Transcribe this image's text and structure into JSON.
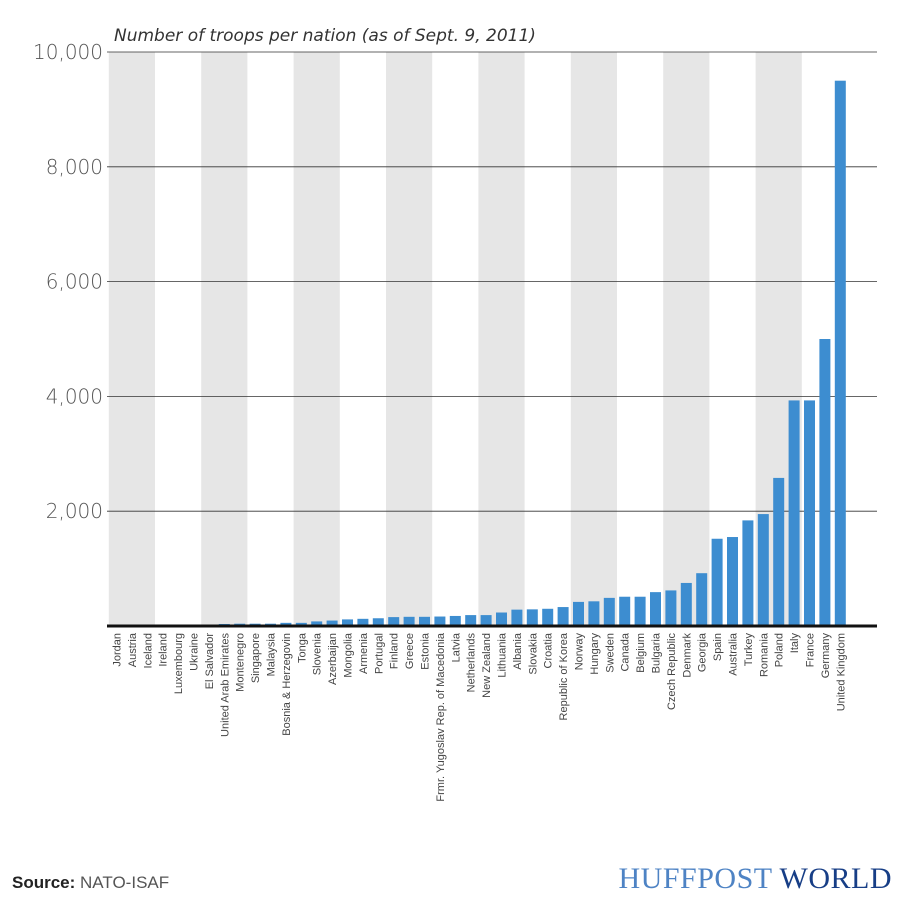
{
  "chart_data": {
    "type": "bar",
    "title": "Number of troops per nation (as of Sept. 9, 2011)",
    "ylim": [
      0,
      10000
    ],
    "yticks": [
      2000,
      4000,
      6000,
      8000,
      10000
    ],
    "ytick_labels": [
      "2,000",
      "4,000",
      "6,000",
      "8,000",
      "10,000"
    ],
    "grid": true,
    "bar_color": "#3d8dd0",
    "band_color": "#e6e6e6",
    "categories": [
      "Jordan",
      "Austria",
      "Iceland",
      "Ireland",
      "Luxembourg",
      "Ukraine",
      "El Salvador",
      "United Arab Emirates",
      "Montenegro",
      "Singapore",
      "Malaysia",
      "Bosnia & Herzegovin",
      "Tonga",
      "Slovenia",
      "Azerbaijan",
      "Mongolia",
      "Armenia",
      "Portugal",
      "Finland",
      "Greece",
      "Estonia",
      "Frmr. Yugoslav Rep. of Macedonia",
      "Latvia",
      "Netherlands",
      "New Zealand",
      "Lithuania",
      "Albania",
      "Slovakia",
      "Croatia",
      "Republic of Korea",
      "Norway",
      "Hungary",
      "Sweden",
      "Canada",
      "Belgium",
      "Bulgaria",
      "Czech Republic",
      "Denmark",
      "Georgia",
      "Spain",
      "Australia",
      "Turkey",
      "Romania",
      "Poland",
      "Italy",
      "France",
      "Germany",
      "United Kingdom"
    ],
    "values": [
      0,
      3,
      4,
      7,
      9,
      10,
      25,
      35,
      40,
      40,
      40,
      55,
      55,
      80,
      95,
      115,
      125,
      135,
      155,
      160,
      160,
      165,
      175,
      190,
      190,
      235,
      285,
      290,
      300,
      330,
      420,
      430,
      490,
      510,
      510,
      590,
      620,
      750,
      920,
      1520,
      1550,
      1840,
      1950,
      2580,
      3930,
      3930,
      5000,
      9500
    ]
  },
  "source": {
    "label": "Source:",
    "value": "NATO-ISAF"
  },
  "brand": {
    "part1": "HUFFPOST",
    "part2": "WORLD"
  }
}
